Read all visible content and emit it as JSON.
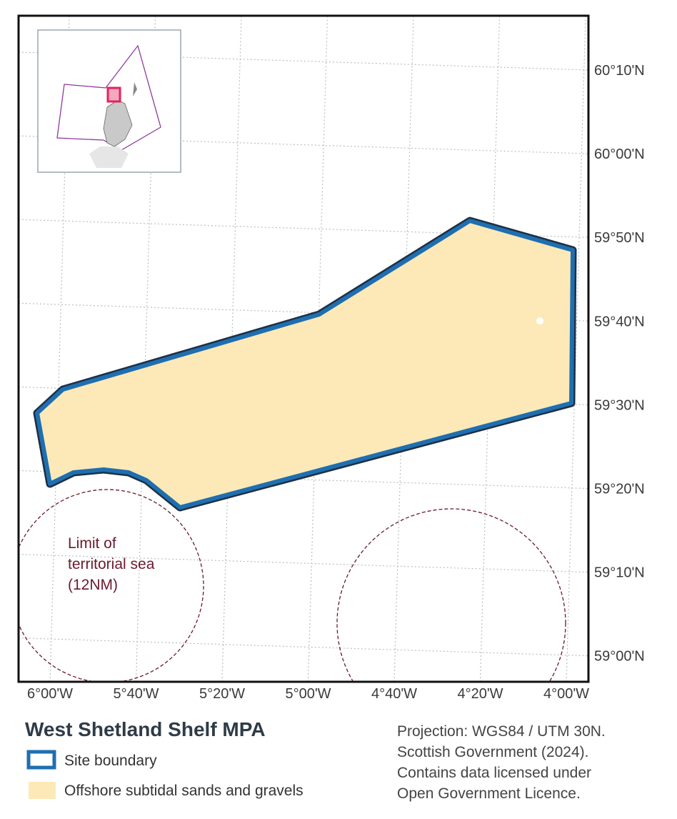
{
  "map": {
    "lat_labels": [
      "60°10'N",
      "60°00'N",
      "59°50'N",
      "59°40'N",
      "59°30'N",
      "59°20'N",
      "59°10'N",
      "59°00'N"
    ],
    "lon_labels": [
      "6°00'W",
      "5°40'W",
      "5°20'W",
      "5°00'W",
      "4°40'W",
      "4°20'W",
      "4°00'W"
    ],
    "annotation": [
      "Limit of",
      "territorial sea",
      "(12NM)"
    ],
    "title": "West Shetland Shelf MPA",
    "legend": [
      "Site boundary",
      "Offshore subtidal sands and gravels"
    ],
    "credits": [
      "Projection: WGS84 / UTM 30N.",
      "Scottish Government (2024).",
      "Contains data licensed under",
      "Open Government Licence."
    ]
  }
}
